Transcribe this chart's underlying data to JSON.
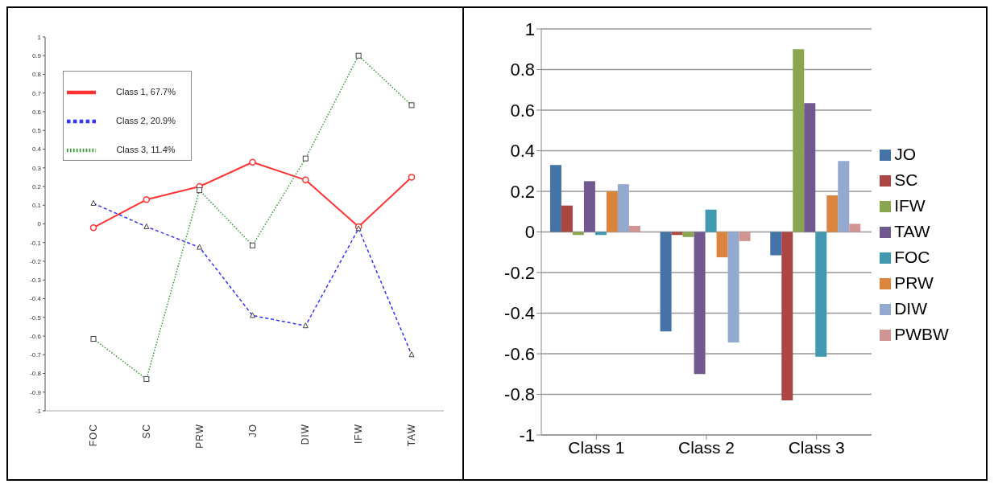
{
  "chart_data": [
    {
      "type": "line",
      "categories": [
        "FOC",
        "SC",
        "PRW",
        "JO",
        "DIW",
        "IFW",
        "TAW"
      ],
      "series": [
        {
          "name": "Class 1, 67.7%",
          "color": "#ff3333",
          "marker": "circle",
          "line_style": "solid",
          "values": [
            -0.02,
            0.13,
            0.2,
            0.33,
            0.235,
            -0.015,
            0.25
          ]
        },
        {
          "name": "Class 2, 20.9%",
          "color": "#3333ff",
          "marker": "triangle",
          "line_style": "dashed",
          "values": [
            0.11,
            -0.015,
            -0.125,
            -0.49,
            -0.545,
            -0.025,
            -0.7
          ]
        },
        {
          "name": "Class 3, 11.4%",
          "color": "#339933",
          "marker": "square",
          "line_style": "dotted",
          "values": [
            -0.615,
            -0.83,
            0.18,
            -0.115,
            0.35,
            0.9,
            0.635
          ]
        }
      ],
      "ylim": [
        -1,
        1
      ],
      "yticks": [
        -1,
        -0.9,
        -0.8,
        -0.7,
        -0.6,
        -0.5,
        -0.4,
        -0.3,
        -0.2,
        -0.1,
        0,
        0.1,
        0.2,
        0.3,
        0.4,
        0.5,
        0.6,
        0.7,
        0.8,
        0.9,
        1
      ],
      "grid": false,
      "legend": "top left"
    },
    {
      "type": "bar",
      "categories": [
        "Class 1",
        "Class 2",
        "Class 3"
      ],
      "series": [
        {
          "name": "JO",
          "color": "#4572a7",
          "values": [
            0.33,
            -0.49,
            -0.115
          ]
        },
        {
          "name": "SC",
          "color": "#aa4643",
          "values": [
            0.13,
            -0.015,
            -0.83
          ]
        },
        {
          "name": "IFW",
          "color": "#89a54e",
          "values": [
            -0.015,
            -0.025,
            0.9
          ]
        },
        {
          "name": "TAW",
          "color": "#71588f",
          "values": [
            0.25,
            -0.7,
            0.635
          ]
        },
        {
          "name": "FOC",
          "color": "#4198af",
          "values": [
            -0.015,
            0.11,
            -0.615
          ]
        },
        {
          "name": "PRW",
          "color": "#db843d",
          "values": [
            0.2,
            -0.125,
            0.18
          ]
        },
        {
          "name": "DIW",
          "color": "#93a9cf",
          "values": [
            0.235,
            -0.545,
            0.35
          ]
        },
        {
          "name": "PWBW",
          "color": "#d09493",
          "values": [
            0.03,
            -0.045,
            0.04
          ]
        }
      ],
      "ylim": [
        -1,
        1
      ],
      "yticks": [
        -1,
        -0.8,
        -0.6,
        -0.4,
        -0.2,
        0,
        0.2,
        0.4,
        0.6,
        0.8,
        1
      ],
      "grid": "y",
      "legend": "right"
    }
  ]
}
